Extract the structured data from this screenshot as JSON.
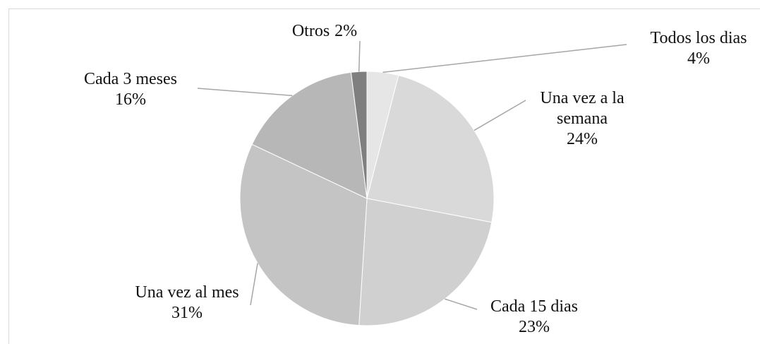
{
  "chart_data": {
    "type": "pie",
    "categories": [
      "Todos los dias",
      "Una vez a la semana",
      "Cada 15 dias",
      "Una vez al mes",
      "Cada 3 meses",
      "Otros"
    ],
    "values": [
      4,
      24,
      23,
      31,
      16,
      2
    ],
    "value_labels": [
      "4%",
      "24%",
      "23%",
      "31%",
      "16%",
      "2%"
    ],
    "colors": [
      "#e6e6e6",
      "#d9d9d9",
      "#d0d0d0",
      "#c4c4c4",
      "#b7b7b7",
      "#7f7f7f"
    ]
  }
}
